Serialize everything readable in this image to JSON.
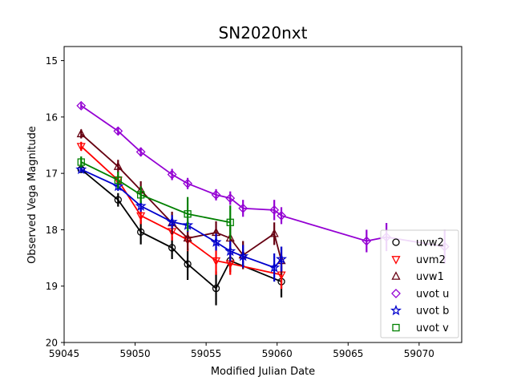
{
  "chart_data": {
    "type": "line",
    "title": "SN2020nxt",
    "xlabel": "Modified Julian Date",
    "ylabel": "Observed Vega Magnitude",
    "xlim": [
      59045,
      59073
    ],
    "ylim": [
      14.75,
      20.0
    ],
    "y_inverted": true,
    "x_ticks": [
      59045,
      59050,
      59055,
      59060,
      59065,
      59070
    ],
    "y_ticks": [
      15,
      16,
      17,
      18,
      19,
      20
    ],
    "legend_position": "bottom-right",
    "grid": false,
    "series": [
      {
        "name": "uvw2",
        "color": "#000000",
        "marker": "circle",
        "x": [
          59046.2,
          59048.8,
          59050.4,
          59052.6,
          59053.7,
          59055.7,
          59056.7,
          59060.3
        ],
        "y": [
          16.93,
          17.47,
          18.04,
          18.32,
          18.61,
          19.04,
          18.55,
          18.92
        ],
        "err": [
          0.06,
          0.12,
          0.22,
          0.2,
          0.28,
          0.3,
          0.2,
          0.28
        ]
      },
      {
        "name": "uvm2",
        "color": "#ff0000",
        "marker": "triangle-down",
        "x": [
          59046.2,
          59048.8,
          59050.4,
          59052.6,
          59053.7,
          59055.7,
          59056.7,
          59060.3
        ],
        "y": [
          16.52,
          17.12,
          17.75,
          18.03,
          18.18,
          18.55,
          18.6,
          18.8
        ],
        "err": [
          0.08,
          0.1,
          0.15,
          0.16,
          0.2,
          0.25,
          0.2,
          0.25
        ]
      },
      {
        "name": "uvw1",
        "color": "#660011",
        "marker": "triangle-up",
        "x": [
          59046.2,
          59048.8,
          59050.4,
          59052.6,
          59053.7,
          59055.7,
          59056.7,
          59057.6,
          59059.8,
          59060.3
        ],
        "y": [
          16.3,
          16.88,
          17.3,
          17.88,
          18.15,
          18.05,
          18.15,
          18.45,
          18.07,
          18.55
        ],
        "err": [
          0.08,
          0.12,
          0.16,
          0.2,
          0.22,
          0.2,
          0.2,
          0.25,
          0.2,
          0.25
        ]
      },
      {
        "name": "uvot u",
        "color": "#9400d3",
        "marker": "diamond",
        "x": [
          59046.2,
          59048.8,
          59050.4,
          59052.6,
          59053.7,
          59055.7,
          59056.7,
          59057.6,
          59059.8,
          59060.3,
          59066.3,
          59067.7,
          59071.8
        ],
        "y": [
          15.8,
          16.25,
          16.62,
          17.02,
          17.18,
          17.38,
          17.44,
          17.62,
          17.65,
          17.75,
          18.2,
          18.13,
          18.3
        ],
        "err": [
          0.05,
          0.06,
          0.08,
          0.1,
          0.1,
          0.1,
          0.12,
          0.15,
          0.18,
          0.15,
          0.2,
          0.25,
          0.3
        ]
      },
      {
        "name": "uvot b",
        "color": "#0000cd",
        "marker": "star",
        "x": [
          59046.2,
          59048.8,
          59050.4,
          59052.6,
          59053.7,
          59055.7,
          59056.7,
          59057.6,
          59059.8,
          59060.3
        ],
        "y": [
          16.93,
          17.23,
          17.58,
          17.86,
          17.92,
          18.22,
          18.38,
          18.47,
          18.67,
          18.52
        ],
        "err": [
          0.05,
          0.08,
          0.1,
          0.12,
          0.12,
          0.15,
          0.18,
          0.2,
          0.25,
          0.22
        ]
      },
      {
        "name": "uvot v",
        "color": "#008000",
        "marker": "square",
        "x": [
          59046.2,
          59048.8,
          59050.4,
          59053.7,
          59056.7
        ],
        "y": [
          16.8,
          17.12,
          17.38,
          17.72,
          17.87
        ],
        "err": [
          0.1,
          0.15,
          0.15,
          0.3,
          0.3
        ]
      }
    ]
  }
}
